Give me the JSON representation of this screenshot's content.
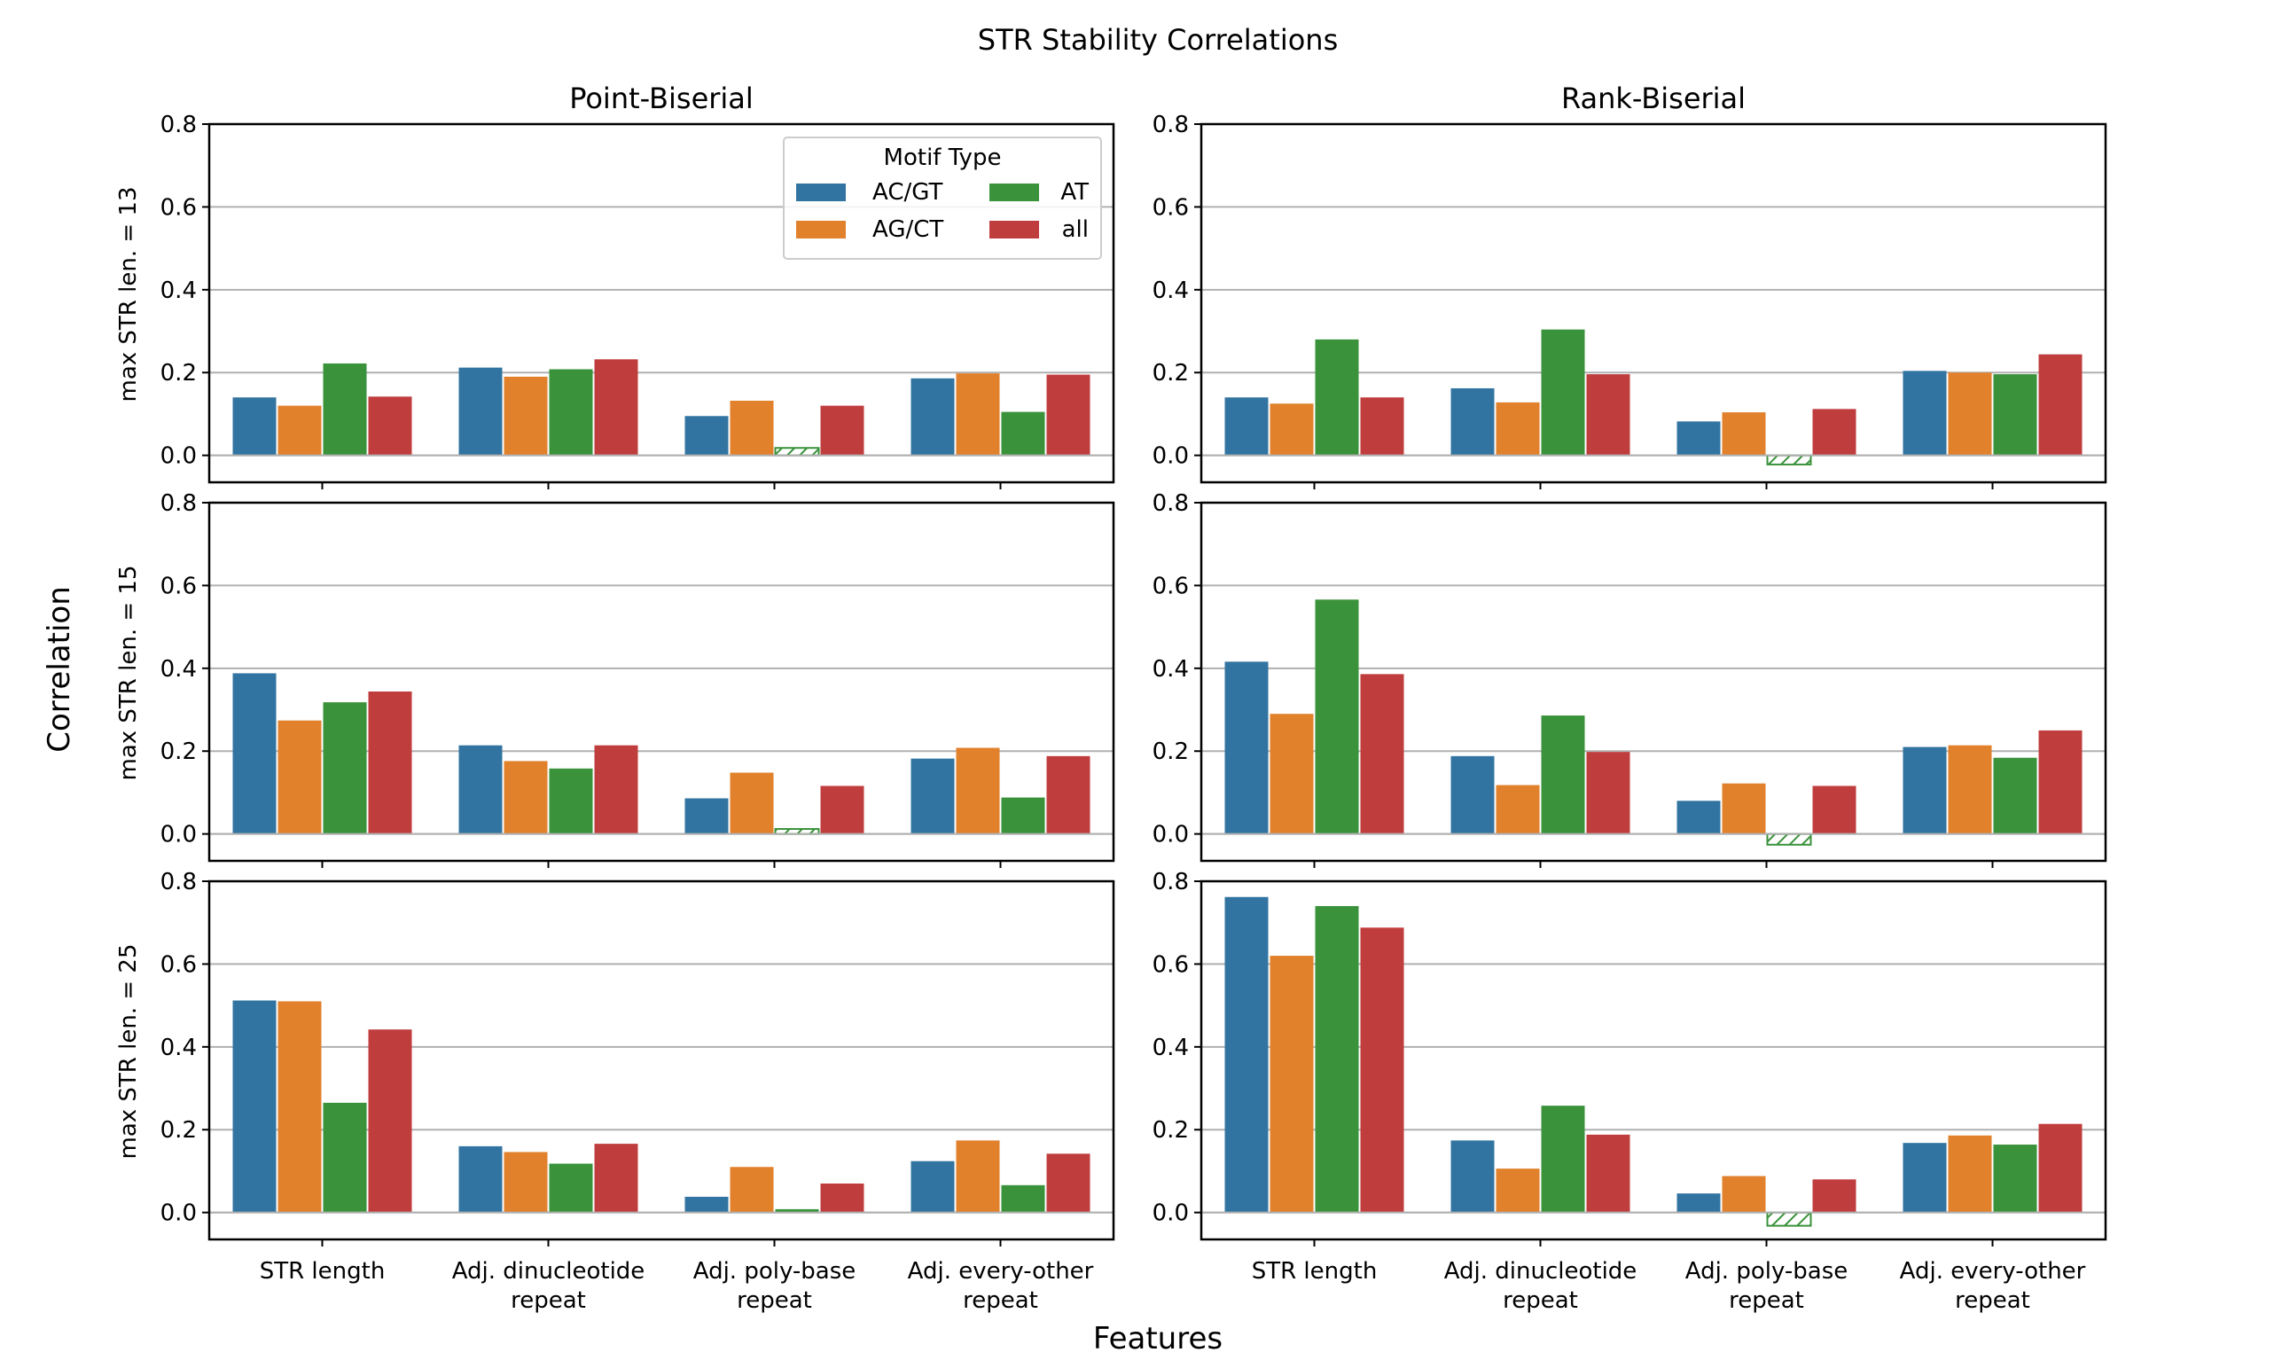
{
  "title": "STR Stability Correlations",
  "xlabel": "Features",
  "ylabel": "Correlation",
  "columns": [
    "Point-Biserial",
    "Rank-Biserial"
  ],
  "rows": [
    "max STR len. = 13",
    "max STR len. = 15",
    "max STR len. = 25"
  ],
  "legend": {
    "title": "Motif Type",
    "entries": [
      "AC/GT",
      "AG/CT",
      "AT",
      "all"
    ],
    "placement": "upper-right of first panel"
  },
  "colors": {
    "AC/GT": "#3274a1",
    "AG/CT": "#e1812c",
    "AT": "#3a923a",
    "all": "#c03d3e"
  },
  "chart_data": {
    "type": "bar",
    "categories": [
      [
        "STR length"
      ],
      [
        "Adj. dinucleotide",
        "repeat"
      ],
      [
        "Adj. poly-base",
        "repeat"
      ],
      [
        "Adj. every-other",
        "repeat"
      ]
    ],
    "ylim": [
      -0.065,
      0.8
    ],
    "yticks": [
      0.0,
      0.2,
      0.4,
      0.6,
      0.8
    ],
    "ytick_labels": [
      "0.0",
      "0.2",
      "0.4",
      "0.6",
      "0.8"
    ],
    "grid": "horizontal",
    "hatched_note": "hatched bars indicate AT poly-base values",
    "panels": [
      {
        "row": "max STR len. = 13",
        "column": "Point-Biserial",
        "series": [
          {
            "name": "AC/GT",
            "values": [
              0.14,
              0.212,
              0.095,
              0.186
            ]
          },
          {
            "name": "AG/CT",
            "values": [
              0.12,
              0.19,
              0.132,
              0.198
            ]
          },
          {
            "name": "AT",
            "values": [
              0.222,
              0.208,
              0.018,
              0.105
            ]
          },
          {
            "name": "all",
            "values": [
              0.142,
              0.232,
              0.12,
              0.195
            ]
          }
        ],
        "hatched": [
          null,
          null,
          [
            2
          ],
          null
        ]
      },
      {
        "row": "max STR len. = 13",
        "column": "Rank-Biserial",
        "series": [
          {
            "name": "AC/GT",
            "values": [
              0.14,
              0.162,
              0.082,
              0.204
            ]
          },
          {
            "name": "AG/CT",
            "values": [
              0.125,
              0.128,
              0.104,
              0.2
            ]
          },
          {
            "name": "AT",
            "values": [
              0.28,
              0.304,
              -0.022,
              0.196
            ]
          },
          {
            "name": "all",
            "values": [
              0.14,
              0.196,
              0.112,
              0.244
            ]
          }
        ],
        "hatched": [
          null,
          null,
          [
            2
          ],
          null
        ]
      },
      {
        "row": "max STR len. = 15",
        "column": "Point-Biserial",
        "series": [
          {
            "name": "AC/GT",
            "values": [
              0.388,
              0.214,
              0.086,
              0.182
            ]
          },
          {
            "name": "AG/CT",
            "values": [
              0.274,
              0.176,
              0.148,
              0.208
            ]
          },
          {
            "name": "AT",
            "values": [
              0.318,
              0.158,
              0.012,
              0.088
            ]
          },
          {
            "name": "all",
            "values": [
              0.344,
              0.214,
              0.116,
              0.188
            ]
          }
        ],
        "hatched": [
          null,
          null,
          [
            2
          ],
          null
        ]
      },
      {
        "row": "max STR len. = 15",
        "column": "Rank-Biserial",
        "series": [
          {
            "name": "AC/GT",
            "values": [
              0.416,
              0.188,
              0.08,
              0.21
            ]
          },
          {
            "name": "AG/CT",
            "values": [
              0.29,
              0.118,
              0.122,
              0.214
            ]
          },
          {
            "name": "AT",
            "values": [
              0.566,
              0.286,
              -0.026,
              0.184
            ]
          },
          {
            "name": "all",
            "values": [
              0.386,
              0.198,
              0.116,
              0.25
            ]
          }
        ],
        "hatched": [
          null,
          null,
          [
            2
          ],
          null
        ]
      },
      {
        "row": "max STR len. = 25",
        "column": "Point-Biserial",
        "series": [
          {
            "name": "AC/GT",
            "values": [
              0.512,
              0.16,
              0.038,
              0.124
            ]
          },
          {
            "name": "AG/CT",
            "values": [
              0.51,
              0.146,
              0.11,
              0.174
            ]
          },
          {
            "name": "AT",
            "values": [
              0.265,
              0.118,
              0.008,
              0.066
            ]
          },
          {
            "name": "all",
            "values": [
              0.442,
              0.166,
              0.07,
              0.142
            ]
          }
        ],
        "hatched": [
          null,
          null,
          null,
          null
        ]
      },
      {
        "row": "max STR len. = 25",
        "column": "Rank-Biserial",
        "series": [
          {
            "name": "AC/GT",
            "values": [
              0.762,
              0.174,
              0.046,
              0.168
            ]
          },
          {
            "name": "AG/CT",
            "values": [
              0.62,
              0.106,
              0.088,
              0.186
            ]
          },
          {
            "name": "AT",
            "values": [
              0.74,
              0.258,
              -0.032,
              0.164
            ]
          },
          {
            "name": "all",
            "values": [
              0.688,
              0.188,
              0.08,
              0.214
            ]
          }
        ],
        "hatched": [
          null,
          null,
          [
            2
          ],
          null
        ]
      }
    ]
  }
}
